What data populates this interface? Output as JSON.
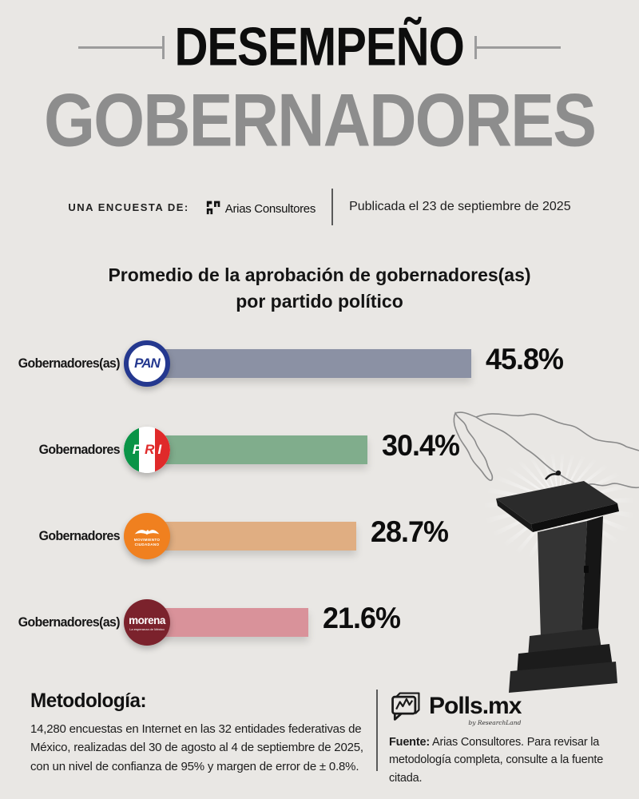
{
  "header": {
    "title_top": "DESEMPEÑO",
    "title_main": "GOBERNADORES"
  },
  "survey_row": {
    "label": "UNA ENCUESTA DE:",
    "agency": "Arias Consultores",
    "published": "Publicada el 23 de septiembre de 2025"
  },
  "chart_data": {
    "type": "bar",
    "orientation": "horizontal",
    "title": "Promedio de la aprobación de gobernadores(as) por partido político",
    "title_line1": "Promedio de la aprobación de gobernadores(as)",
    "title_line2": "por partido político",
    "categories": [
      "PAN",
      "PRI",
      "Movimiento Ciudadano",
      "Morena"
    ],
    "values": [
      45.8,
      30.4,
      28.7,
      21.6
    ],
    "value_suffix": "%",
    "xlim": [
      0,
      50
    ],
    "grid": false,
    "rows": [
      {
        "label": "Gobernadores(as)",
        "party": "PAN",
        "value": 45.8,
        "display": "45.8%",
        "bar_color": "#8b91a4"
      },
      {
        "label": "Gobernadores",
        "party": "PRI",
        "value": 30.4,
        "display": "30.4%",
        "bar_color": "#80ad8c"
      },
      {
        "label": "Gobernadores",
        "party": "Movimiento Ciudadano",
        "value": 28.7,
        "display": "28.7%",
        "bar_color": "#e0ae82"
      },
      {
        "label": "Gobernadores(as)",
        "party": "Morena",
        "value": 21.6,
        "display": "21.6%",
        "bar_color": "#d9929a"
      }
    ]
  },
  "logos": {
    "pan": {
      "text": "PAN",
      "ring_color": "#24388f"
    },
    "pri": {
      "p": "P",
      "r": "R",
      "i": "I",
      "green": "#0a9447",
      "red": "#e02a2a"
    },
    "mc": {
      "line1": "MOVIMIENTO",
      "line2": "CIUDADANO",
      "bg": "#f0801f"
    },
    "morena": {
      "text": "morena",
      "tagline": "La esperanza de México",
      "bg": "#7b222c"
    }
  },
  "footer": {
    "methodology_title": "Metodología:",
    "methodology_text": "14,280 encuestas en Internet en las 32 entidades federativas de México, realizadas del 30 de agosto al 4 de septiembre de 2025, con un nivel de confianza de 95% y margen de error de ± 0.8%.",
    "brand": "Polls.mx",
    "brand_sub": "by ResearchLand",
    "source_label": "Fuente:",
    "source_text": " Arias Consultores. Para revisar la metodología completa, consulte a la fuente citada."
  }
}
